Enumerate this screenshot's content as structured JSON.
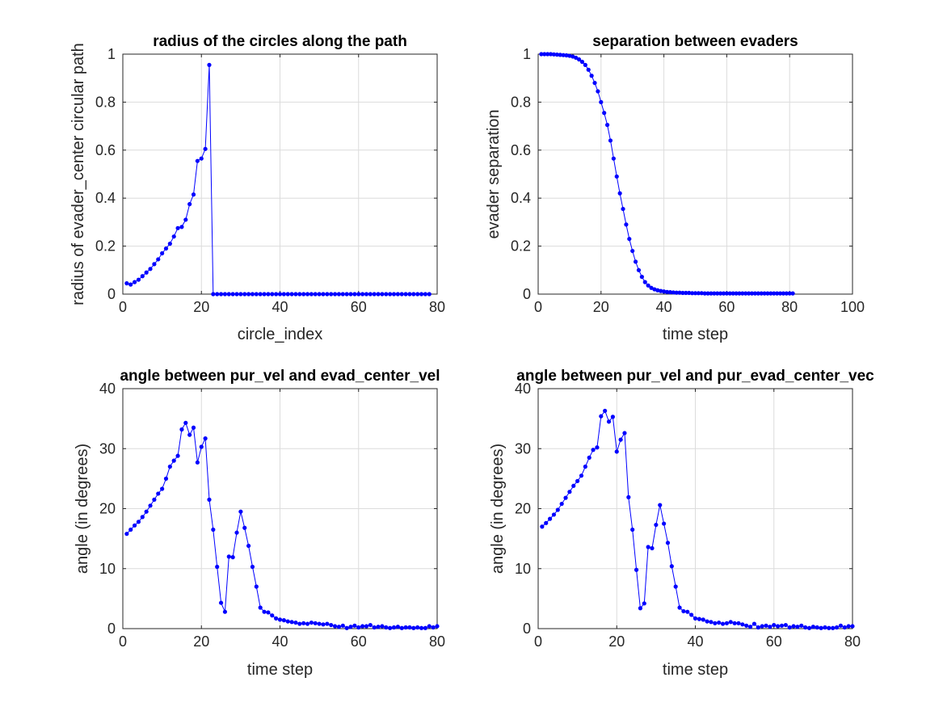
{
  "chart_data": [
    {
      "type": "line",
      "title": "radius of the circles along the path",
      "xlabel": "circle_index",
      "ylabel": "radius of evader_center circular path",
      "xlim": [
        0,
        80
      ],
      "ylim": [
        0,
        1
      ],
      "xticks": [
        0,
        20,
        40,
        60,
        80
      ],
      "yticks": [
        0,
        0.2,
        0.4,
        0.6,
        0.8,
        1
      ],
      "ytick_labels": [
        "0",
        "0.2",
        "0.4",
        "0.6",
        "0.8",
        "1"
      ],
      "grid": true,
      "color": "#0000ff",
      "series": [
        {
          "x": [
            1,
            2,
            3,
            4,
            5,
            6,
            7,
            8,
            9,
            10,
            11,
            12,
            13,
            14,
            15,
            16,
            17,
            18,
            19,
            20,
            21,
            22,
            23,
            24,
            25,
            26,
            27,
            28,
            29,
            30,
            31,
            32,
            33,
            34,
            35,
            36,
            37,
            38,
            39,
            40,
            41,
            42,
            43,
            44,
            45,
            46,
            47,
            48,
            49,
            50,
            51,
            52,
            53,
            54,
            55,
            56,
            57,
            58,
            59,
            60,
            61,
            62,
            63,
            64,
            65,
            66,
            67,
            68,
            69,
            70,
            71,
            72,
            73,
            74,
            75,
            76,
            77,
            78
          ],
          "y": [
            0.045,
            0.04,
            0.05,
            0.06,
            0.075,
            0.09,
            0.105,
            0.125,
            0.145,
            0.17,
            0.19,
            0.21,
            0.24,
            0.275,
            0.28,
            0.31,
            0.375,
            0.415,
            0.555,
            0.565,
            0.605,
            0.955,
            0,
            0,
            0,
            0,
            0,
            0,
            0,
            0,
            0,
            0,
            0,
            0,
            0,
            0,
            0,
            0,
            0,
            0,
            0,
            0,
            0,
            0,
            0,
            0,
            0,
            0,
            0,
            0,
            0,
            0,
            0,
            0,
            0,
            0,
            0,
            0,
            0,
            0,
            0,
            0,
            0,
            0,
            0,
            0,
            0,
            0,
            0,
            0,
            0,
            0,
            0,
            0,
            0,
            0,
            0,
            0
          ]
        }
      ]
    },
    {
      "type": "line",
      "title": "separation between evaders",
      "xlabel": "time step",
      "ylabel": "evader separation",
      "xlim": [
        0,
        100
      ],
      "ylim": [
        0,
        1
      ],
      "xticks": [
        0,
        20,
        40,
        60,
        80,
        100
      ],
      "yticks": [
        0,
        0.2,
        0.4,
        0.6,
        0.8,
        1
      ],
      "ytick_labels": [
        "0",
        "0.2",
        "0.4",
        "0.6",
        "0.8",
        "1"
      ],
      "grid": true,
      "color": "#0000ff",
      "series": [
        {
          "x": [
            1,
            2,
            3,
            4,
            5,
            6,
            7,
            8,
            9,
            10,
            11,
            12,
            13,
            14,
            15,
            16,
            17,
            18,
            19,
            20,
            21,
            22,
            23,
            24,
            25,
            26,
            27,
            28,
            29,
            30,
            31,
            32,
            33,
            34,
            35,
            36,
            37,
            38,
            39,
            40,
            41,
            42,
            43,
            44,
            45,
            46,
            47,
            48,
            49,
            50,
            51,
            52,
            53,
            54,
            55,
            56,
            57,
            58,
            59,
            60,
            61,
            62,
            63,
            64,
            65,
            66,
            67,
            68,
            69,
            70,
            71,
            72,
            73,
            74,
            75,
            76,
            77,
            78,
            79,
            80,
            81
          ],
          "y": [
            1,
            1,
            1,
            1,
            0.999,
            0.998,
            0.997,
            0.996,
            0.995,
            0.993,
            0.99,
            0.985,
            0.978,
            0.968,
            0.955,
            0.935,
            0.91,
            0.88,
            0.845,
            0.8,
            0.755,
            0.705,
            0.64,
            0.565,
            0.49,
            0.42,
            0.355,
            0.29,
            0.23,
            0.18,
            0.135,
            0.1,
            0.072,
            0.05,
            0.036,
            0.026,
            0.02,
            0.016,
            0.013,
            0.011,
            0.009,
            0.008,
            0.007,
            0.006,
            0.006,
            0.005,
            0.005,
            0.005,
            0.004,
            0.004,
            0.004,
            0.004,
            0.003,
            0.003,
            0.003,
            0.003,
            0.003,
            0.003,
            0.003,
            0.003,
            0.003,
            0.003,
            0.003,
            0.003,
            0.003,
            0.003,
            0.003,
            0.003,
            0.003,
            0.003,
            0.003,
            0.003,
            0.003,
            0.003,
            0.003,
            0.003,
            0.003,
            0.003,
            0.003,
            0.003,
            0.003
          ]
        }
      ]
    },
    {
      "type": "line",
      "title": "angle between pur_vel and evad_center_vel",
      "xlabel": "time step",
      "ylabel": "angle (in degrees)",
      "xlim": [
        0,
        80
      ],
      "ylim": [
        0,
        40
      ],
      "xticks": [
        0,
        20,
        40,
        60,
        80
      ],
      "yticks": [
        0,
        10,
        20,
        30,
        40
      ],
      "ytick_labels": [
        "0",
        "10",
        "20",
        "30",
        "40"
      ],
      "grid": true,
      "color": "#0000ff",
      "series": [
        {
          "x": [
            1,
            2,
            3,
            4,
            5,
            6,
            7,
            8,
            9,
            10,
            11,
            12,
            13,
            14,
            15,
            16,
            17,
            18,
            19,
            20,
            21,
            22,
            23,
            24,
            25,
            26,
            27,
            28,
            29,
            30,
            31,
            32,
            33,
            34,
            35,
            36,
            37,
            38,
            39,
            40,
            41,
            42,
            43,
            44,
            45,
            46,
            47,
            48,
            49,
            50,
            51,
            52,
            53,
            54,
            55,
            56,
            57,
            58,
            59,
            60,
            61,
            62,
            63,
            64,
            65,
            66,
            67,
            68,
            69,
            70,
            71,
            72,
            73,
            74,
            75,
            76,
            77,
            78,
            79,
            80
          ],
          "y": [
            15.8,
            16.5,
            17.2,
            17.8,
            18.6,
            19.5,
            20.5,
            21.5,
            22.5,
            23.3,
            25.0,
            27.0,
            28.0,
            28.8,
            33.2,
            34.3,
            32.3,
            33.5,
            27.7,
            30.3,
            31.7,
            21.5,
            16.5,
            10.3,
            4.3,
            2.8,
            12.0,
            11.9,
            16.0,
            19.5,
            16.8,
            13.8,
            10.3,
            7.0,
            3.5,
            2.8,
            2.7,
            2.2,
            1.7,
            1.5,
            1.4,
            1.2,
            1.1,
            1.0,
            0.8,
            0.9,
            0.8,
            1.0,
            0.9,
            0.8,
            0.7,
            0.8,
            0.6,
            0.4,
            0.3,
            0.5,
            0.1,
            0.3,
            0.5,
            0.2,
            0.4,
            0.4,
            0.6,
            0.2,
            0.3,
            0.4,
            0.2,
            0.1,
            0.2,
            0.3,
            0.1,
            0.2,
            0.2,
            0.1,
            0.2,
            0.1,
            0.1,
            0.4,
            0.2,
            0.4
          ]
        }
      ]
    },
    {
      "type": "line",
      "title": "angle between pur_vel and pur_evad_center_vec",
      "xlabel": "time step",
      "ylabel": "angle (in degrees)",
      "xlim": [
        0,
        80
      ],
      "ylim": [
        0,
        40
      ],
      "xticks": [
        0,
        20,
        40,
        60,
        80
      ],
      "yticks": [
        0,
        10,
        20,
        30,
        40
      ],
      "ytick_labels": [
        "0",
        "10",
        "20",
        "30",
        "40"
      ],
      "grid": true,
      "color": "#0000ff",
      "series": [
        {
          "x": [
            1,
            2,
            3,
            4,
            5,
            6,
            7,
            8,
            9,
            10,
            11,
            12,
            13,
            14,
            15,
            16,
            17,
            18,
            19,
            20,
            21,
            22,
            23,
            24,
            25,
            26,
            27,
            28,
            29,
            30,
            31,
            32,
            33,
            34,
            35,
            36,
            37,
            38,
            39,
            40,
            41,
            42,
            43,
            44,
            45,
            46,
            47,
            48,
            49,
            50,
            51,
            52,
            53,
            54,
            55,
            56,
            57,
            58,
            59,
            60,
            61,
            62,
            63,
            64,
            65,
            66,
            67,
            68,
            69,
            70,
            71,
            72,
            73,
            74,
            75,
            76,
            77,
            78,
            79,
            80
          ],
          "y": [
            17.0,
            17.6,
            18.3,
            19.0,
            19.8,
            20.8,
            21.8,
            22.8,
            23.8,
            24.6,
            25.5,
            27.0,
            28.5,
            29.8,
            30.2,
            35.4,
            36.3,
            34.5,
            35.3,
            29.5,
            31.5,
            32.6,
            21.9,
            16.5,
            9.8,
            3.4,
            4.2,
            13.6,
            13.4,
            17.3,
            20.6,
            17.5,
            14.3,
            10.4,
            7.0,
            3.5,
            2.9,
            2.8,
            2.3,
            1.7,
            1.6,
            1.5,
            1.2,
            1.1,
            0.9,
            1.0,
            0.8,
            0.9,
            1.1,
            0.9,
            0.9,
            0.7,
            0.5,
            0.3,
            0.8,
            0.2,
            0.4,
            0.5,
            0.3,
            0.6,
            0.4,
            0.5,
            0.6,
            0.2,
            0.4,
            0.3,
            0.5,
            0.2,
            0.1,
            0.3,
            0.2,
            0.1,
            0.2,
            0.1,
            0.1,
            0.2,
            0.5,
            0.2,
            0.4,
            0.4
          ]
        }
      ]
    }
  ]
}
